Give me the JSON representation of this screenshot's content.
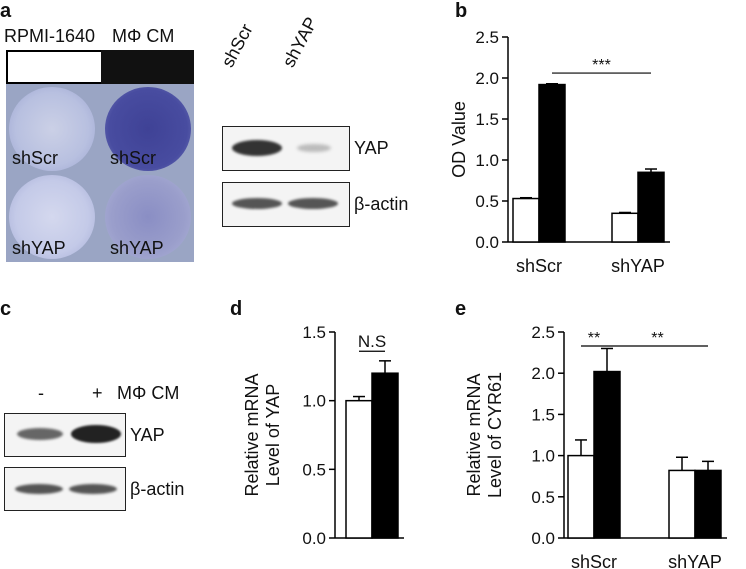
{
  "panels": {
    "a": {
      "label": "a",
      "cond_left": "RPMI-1640",
      "cond_right": "MΦ CM",
      "wells": [
        "shScr",
        "shScr",
        "shYAP",
        "shYAP"
      ],
      "blot_lanes": [
        "shScr",
        "shYAP"
      ],
      "blot_labels": [
        "YAP",
        "β-actin"
      ]
    },
    "b": {
      "label": "b"
    },
    "c": {
      "label": "c",
      "lane_minus": "-",
      "lane_plus": "+",
      "treatment": "MΦ CM",
      "blot_labels": [
        "YAP",
        "β-actin"
      ]
    },
    "d": {
      "label": "d"
    },
    "e": {
      "label": "e"
    }
  },
  "chart_data": [
    {
      "id": "b",
      "type": "bar",
      "ylabel": "OD Value",
      "ylim": [
        0,
        2.5
      ],
      "yticks": [
        "0.0",
        "0.5",
        "1.0",
        "1.5",
        "2.0",
        "2.5"
      ],
      "categories": [
        "shScr",
        "shYAP"
      ],
      "series": [
        {
          "fill": "#ffffff",
          "values": [
            0.53,
            0.35
          ],
          "errors": [
            0.01,
            0.01
          ]
        },
        {
          "fill": "#000000",
          "values": [
            1.92,
            0.85
          ],
          "errors": [
            0.01,
            0.04
          ]
        }
      ],
      "annotations": [
        {
          "text": "***",
          "from_category": 0,
          "from_series": 1,
          "to_category": 1,
          "to_series": 1,
          "y": 2.06
        }
      ]
    },
    {
      "id": "d",
      "type": "bar",
      "ylabel": "Relative mRNA Level of YAP",
      "ylim": [
        0,
        1.5
      ],
      "yticks": [
        "0.0",
        "0.5",
        "1.0",
        "1.5"
      ],
      "categories": [
        ""
      ],
      "series": [
        {
          "fill": "#ffffff",
          "values": [
            1.0
          ],
          "errors": [
            0.03
          ]
        },
        {
          "fill": "#000000",
          "values": [
            1.2
          ],
          "errors": [
            0.09
          ]
        }
      ],
      "annotations": [
        {
          "text": "N.S",
          "from_category": 0,
          "from_series": 0,
          "to_category": 0,
          "to_series": 1,
          "y": 1.36
        }
      ]
    },
    {
      "id": "e",
      "type": "bar",
      "ylabel": "Relative mRNA Level of CYR61",
      "ylim": [
        0,
        2.5
      ],
      "yticks": [
        "0.0",
        "0.5",
        "1.0",
        "1.5",
        "2.0",
        "2.5"
      ],
      "categories": [
        "shScr",
        "shYAP"
      ],
      "series": [
        {
          "fill": "#ffffff",
          "values": [
            1.0,
            0.82
          ],
          "errors": [
            0.19,
            0.16
          ]
        },
        {
          "fill": "#000000",
          "values": [
            2.02,
            0.82
          ],
          "errors": [
            0.28,
            0.11
          ]
        }
      ],
      "annotations": [
        {
          "text": "**",
          "from_category": 0,
          "from_series": 0,
          "to_category": 0,
          "to_series": 1,
          "y": 2.33
        },
        {
          "text": "**",
          "from_category": 0,
          "from_series": 1,
          "to_category": 1,
          "to_series": 1,
          "y": 2.33
        }
      ]
    }
  ]
}
